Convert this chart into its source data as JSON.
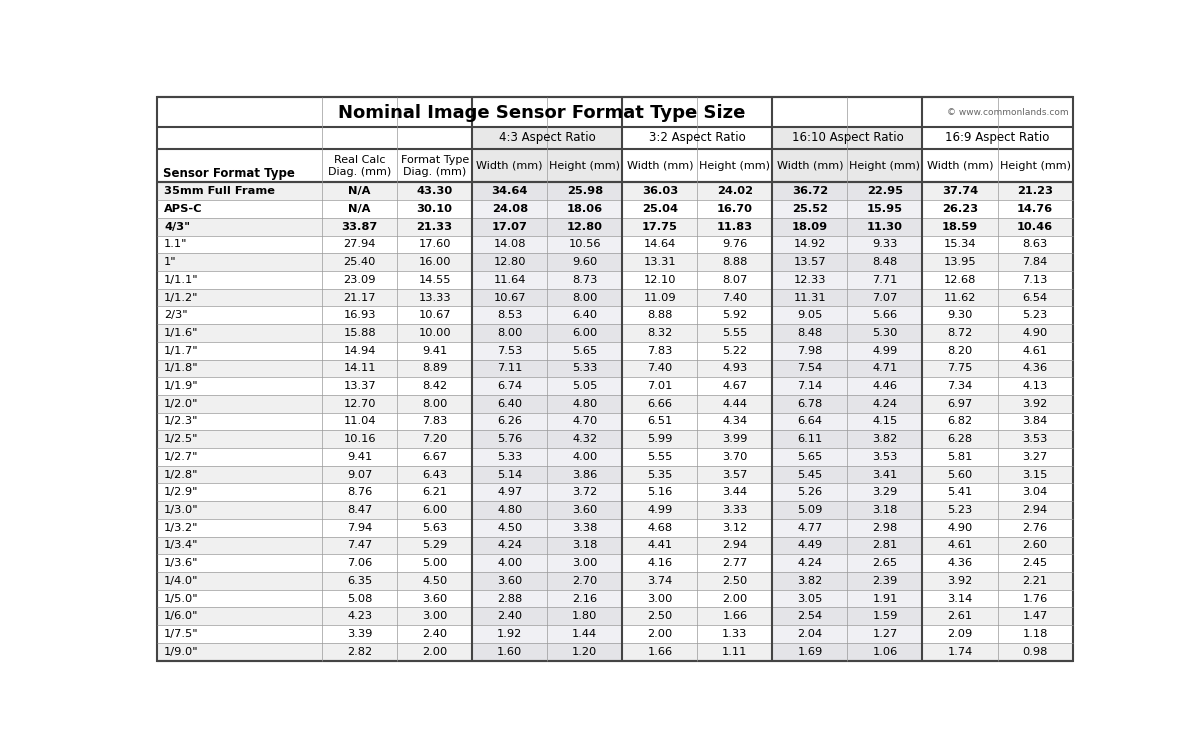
{
  "title": "Nominal Image Sensor Format Type Size",
  "copyright": "© www.commonlands.com",
  "columns": [
    "Sensor Format Type",
    "Real Calc\nDiag. (mm)",
    "Format Type\nDiag. (mm)",
    "Width (mm)",
    "Height (mm)",
    "Width (mm)",
    "Height (mm)",
    "Width (mm)",
    "Height (mm)",
    "Width (mm)",
    "Height (mm)"
  ],
  "rows": [
    [
      "35mm Full Frame",
      "N/A",
      "43.30",
      "34.64",
      "25.98",
      "36.03",
      "24.02",
      "36.72",
      "22.95",
      "37.74",
      "21.23"
    ],
    [
      "APS-C",
      "N/A",
      "30.10",
      "24.08",
      "18.06",
      "25.04",
      "16.70",
      "25.52",
      "15.95",
      "26.23",
      "14.76"
    ],
    [
      "4/3\"",
      "33.87",
      "21.33",
      "17.07",
      "12.80",
      "17.75",
      "11.83",
      "18.09",
      "11.30",
      "18.59",
      "10.46"
    ],
    [
      "1.1\"",
      "27.94",
      "17.60",
      "14.08",
      "10.56",
      "14.64",
      "9.76",
      "14.92",
      "9.33",
      "15.34",
      "8.63"
    ],
    [
      "1\"",
      "25.40",
      "16.00",
      "12.80",
      "9.60",
      "13.31",
      "8.88",
      "13.57",
      "8.48",
      "13.95",
      "7.84"
    ],
    [
      "1/1.1\"",
      "23.09",
      "14.55",
      "11.64",
      "8.73",
      "12.10",
      "8.07",
      "12.33",
      "7.71",
      "12.68",
      "7.13"
    ],
    [
      "1/1.2\"",
      "21.17",
      "13.33",
      "10.67",
      "8.00",
      "11.09",
      "7.40",
      "11.31",
      "7.07",
      "11.62",
      "6.54"
    ],
    [
      "2/3\"",
      "16.93",
      "10.67",
      "8.53",
      "6.40",
      "8.88",
      "5.92",
      "9.05",
      "5.66",
      "9.30",
      "5.23"
    ],
    [
      "1/1.6\"",
      "15.88",
      "10.00",
      "8.00",
      "6.00",
      "8.32",
      "5.55",
      "8.48",
      "5.30",
      "8.72",
      "4.90"
    ],
    [
      "1/1.7\"",
      "14.94",
      "9.41",
      "7.53",
      "5.65",
      "7.83",
      "5.22",
      "7.98",
      "4.99",
      "8.20",
      "4.61"
    ],
    [
      "1/1.8\"",
      "14.11",
      "8.89",
      "7.11",
      "5.33",
      "7.40",
      "4.93",
      "7.54",
      "4.71",
      "7.75",
      "4.36"
    ],
    [
      "1/1.9\"",
      "13.37",
      "8.42",
      "6.74",
      "5.05",
      "7.01",
      "4.67",
      "7.14",
      "4.46",
      "7.34",
      "4.13"
    ],
    [
      "1/2.0\"",
      "12.70",
      "8.00",
      "6.40",
      "4.80",
      "6.66",
      "4.44",
      "6.78",
      "4.24",
      "6.97",
      "3.92"
    ],
    [
      "1/2.3\"",
      "11.04",
      "7.83",
      "6.26",
      "4.70",
      "6.51",
      "4.34",
      "6.64",
      "4.15",
      "6.82",
      "3.84"
    ],
    [
      "1/2.5\"",
      "10.16",
      "7.20",
      "5.76",
      "4.32",
      "5.99",
      "3.99",
      "6.11",
      "3.82",
      "6.28",
      "3.53"
    ],
    [
      "1/2.7\"",
      "9.41",
      "6.67",
      "5.33",
      "4.00",
      "5.55",
      "3.70",
      "5.65",
      "3.53",
      "5.81",
      "3.27"
    ],
    [
      "1/2.8\"",
      "9.07",
      "6.43",
      "5.14",
      "3.86",
      "5.35",
      "3.57",
      "5.45",
      "3.41",
      "5.60",
      "3.15"
    ],
    [
      "1/2.9\"",
      "8.76",
      "6.21",
      "4.97",
      "3.72",
      "5.16",
      "3.44",
      "5.26",
      "3.29",
      "5.41",
      "3.04"
    ],
    [
      "1/3.0\"",
      "8.47",
      "6.00",
      "4.80",
      "3.60",
      "4.99",
      "3.33",
      "5.09",
      "3.18",
      "5.23",
      "2.94"
    ],
    [
      "1/3.2\"",
      "7.94",
      "5.63",
      "4.50",
      "3.38",
      "4.68",
      "3.12",
      "4.77",
      "2.98",
      "4.90",
      "2.76"
    ],
    [
      "1/3.4\"",
      "7.47",
      "5.29",
      "4.24",
      "3.18",
      "4.41",
      "2.94",
      "4.49",
      "2.81",
      "4.61",
      "2.60"
    ],
    [
      "1/3.6\"",
      "7.06",
      "5.00",
      "4.00",
      "3.00",
      "4.16",
      "2.77",
      "4.24",
      "2.65",
      "4.36",
      "2.45"
    ],
    [
      "1/4.0\"",
      "6.35",
      "4.50",
      "3.60",
      "2.70",
      "3.74",
      "2.50",
      "3.82",
      "2.39",
      "3.92",
      "2.21"
    ],
    [
      "1/5.0\"",
      "5.08",
      "3.60",
      "2.88",
      "2.16",
      "3.00",
      "2.00",
      "3.05",
      "1.91",
      "3.14",
      "1.76"
    ],
    [
      "1/6.0\"",
      "4.23",
      "3.00",
      "2.40",
      "1.80",
      "2.50",
      "1.66",
      "2.54",
      "1.59",
      "2.61",
      "1.47"
    ],
    [
      "1/7.5\"",
      "3.39",
      "2.40",
      "1.92",
      "1.44",
      "2.00",
      "1.33",
      "2.04",
      "1.27",
      "2.09",
      "1.18"
    ],
    [
      "1/9.0\"",
      "2.82",
      "2.00",
      "1.60",
      "1.20",
      "1.66",
      "1.11",
      "1.69",
      "1.06",
      "1.74",
      "0.98"
    ]
  ],
  "bold_rows": [
    0,
    1,
    2
  ],
  "border_color": "#999999",
  "thick_border_color": "#444444",
  "title_fontsize": 13,
  "header_fontsize": 8.5,
  "cell_fontsize": 8.2,
  "group_bg_43": "#e8e8e8",
  "group_bg_32": "#ffffff",
  "group_bg_1610": "#e8e8e8",
  "group_bg_169": "#ffffff",
  "row_bg_light": "#f0f0f0",
  "row_bg_white": "#ffffff"
}
